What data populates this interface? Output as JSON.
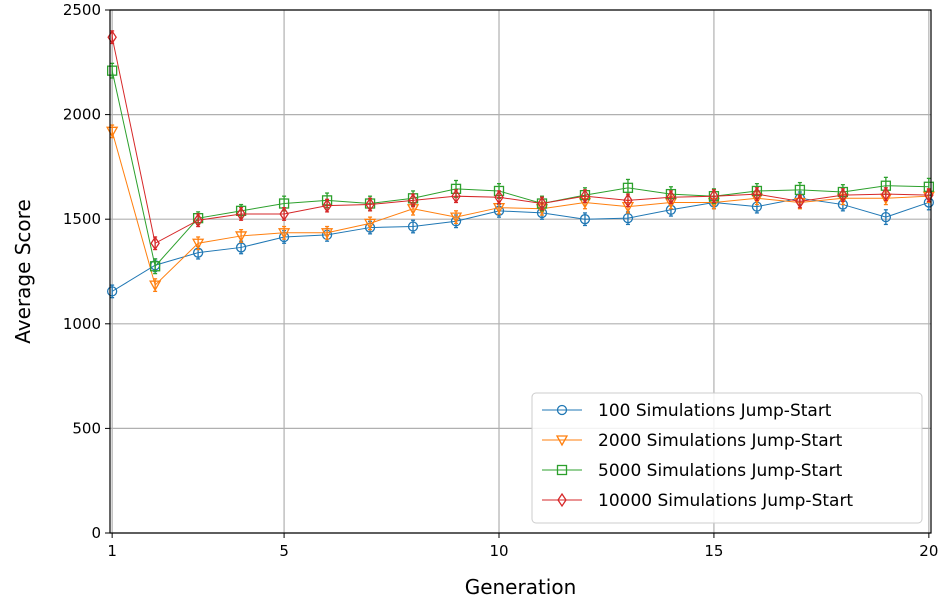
{
  "chart_data": {
    "type": "line",
    "xlabel": "Generation",
    "ylabel": "Average Score",
    "xlim": [
      0.95,
      20.05
    ],
    "ylim": [
      0,
      2500
    ],
    "x_ticks": [
      1,
      5,
      10,
      15,
      20
    ],
    "y_ticks": [
      0,
      500,
      1000,
      1500,
      2000,
      2500
    ],
    "grid": true,
    "legend_position": "bottom-right",
    "x": [
      1,
      2,
      3,
      4,
      5,
      6,
      7,
      8,
      9,
      10,
      11,
      12,
      13,
      14,
      15,
      16,
      17,
      18,
      19,
      20
    ],
    "series": [
      {
        "name": "100 Simulations Jump-Start",
        "color": "#1f77b4",
        "marker": "circle",
        "values": [
          1155,
          1280,
          1340,
          1365,
          1415,
          1425,
          1460,
          1465,
          1490,
          1540,
          1530,
          1500,
          1505,
          1545,
          1580,
          1560,
          1600,
          1570,
          1510,
          1580
        ],
        "errors": [
          30,
          30,
          30,
          30,
          30,
          30,
          30,
          30,
          30,
          30,
          30,
          30,
          30,
          30,
          30,
          30,
          30,
          30,
          35,
          35
        ]
      },
      {
        "name": "2000 Simulations Jump-Start",
        "color": "#ff7f0e",
        "marker": "triangle-down",
        "values": [
          1920,
          1185,
          1385,
          1420,
          1435,
          1435,
          1480,
          1550,
          1510,
          1555,
          1550,
          1580,
          1560,
          1580,
          1580,
          1600,
          1580,
          1600,
          1600,
          1610
        ],
        "errors": [
          30,
          30,
          30,
          30,
          30,
          30,
          30,
          30,
          30,
          30,
          30,
          30,
          30,
          30,
          30,
          30,
          30,
          30,
          30,
          30
        ]
      },
      {
        "name": "5000 Simulations Jump-Start",
        "color": "#2ca02c",
        "marker": "square",
        "values": [
          2210,
          1275,
          1505,
          1540,
          1575,
          1590,
          1575,
          1600,
          1645,
          1635,
          1575,
          1615,
          1650,
          1620,
          1610,
          1635,
          1640,
          1630,
          1660,
          1655
        ],
        "errors": [
          35,
          35,
          30,
          30,
          35,
          35,
          35,
          35,
          40,
          35,
          35,
          35,
          40,
          35,
          35,
          35,
          35,
          35,
          40,
          40
        ]
      },
      {
        "name": "10000 Simulations Jump-Start",
        "color": "#d62728",
        "marker": "diamond",
        "values": [
          2370,
          1385,
          1495,
          1525,
          1525,
          1565,
          1570,
          1590,
          1610,
          1605,
          1575,
          1610,
          1590,
          1605,
          1610,
          1620,
          1585,
          1615,
          1620,
          1615
        ],
        "errors": [
          30,
          30,
          30,
          30,
          30,
          30,
          30,
          30,
          30,
          30,
          30,
          30,
          30,
          30,
          30,
          30,
          30,
          30,
          30,
          30
        ]
      }
    ]
  }
}
